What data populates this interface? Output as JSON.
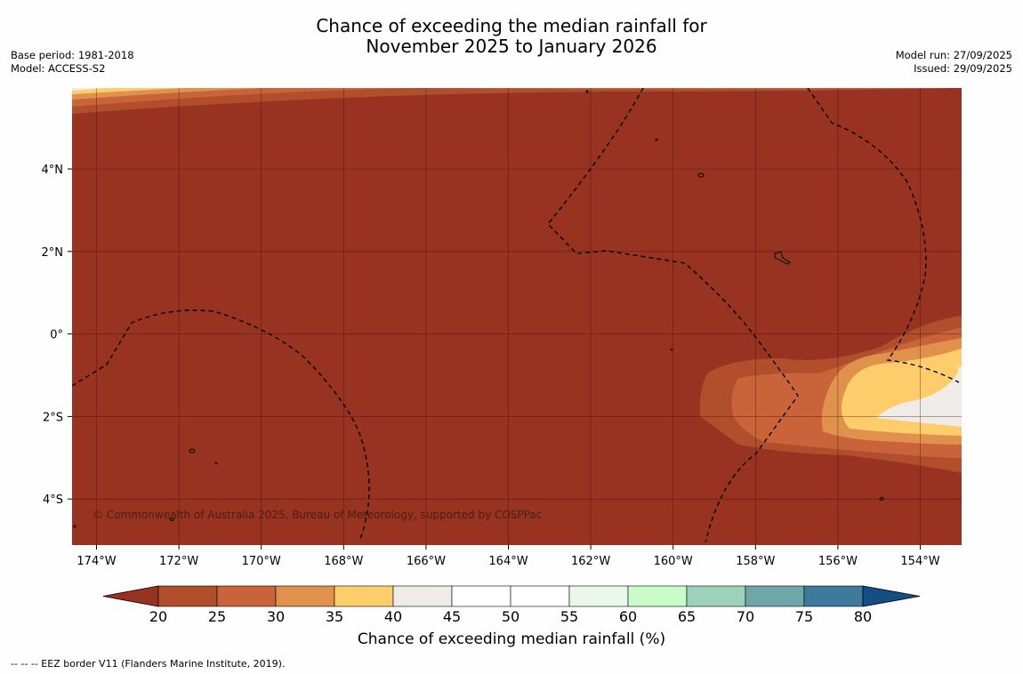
{
  "title": {
    "line1": "Chance of exceeding the median rainfall for",
    "line2": "November 2025 to January 2026"
  },
  "meta_left": {
    "base_period": "Base period: 1981-2018",
    "model": "Model: ACCESS-S2"
  },
  "meta_right": {
    "model_run": "Model run: 27/09/2025",
    "issued": "Issued: 29/09/2025"
  },
  "map": {
    "x_ticks": [
      "174°W",
      "172°W",
      "170°W",
      "168°W",
      "166°W",
      "164°W",
      "162°W",
      "160°W",
      "158°W",
      "156°W",
      "154°W"
    ],
    "y_ticks": [
      "4°N",
      "2°N",
      "0°",
      "2°S",
      "4°S"
    ],
    "copyright": "© Commonwealth of Australia 2025, Bureau of Meteorology, supported by COSPPac",
    "background_color": "#983221"
  },
  "colorbar": {
    "ticks": [
      "20",
      "25",
      "30",
      "35",
      "40",
      "45",
      "50",
      "55",
      "60",
      "65",
      "70",
      "75",
      "80"
    ],
    "colors": [
      "#b14e2c",
      "#c9633a",
      "#e0924c",
      "#fecd6b",
      "#efebe6",
      "#ffffff",
      "#ffffff",
      "#ebf7eb",
      "#c8fdca",
      "#9dd2ba",
      "#6fa7a8",
      "#3d7a9b"
    ],
    "under_color": "#983221",
    "over_color": "#134e84",
    "label": "Chance of exceeding median rainfall (%)"
  },
  "footer": "--  --  -- EEZ border V11 (Flanders Marine Institute, 2019)."
}
